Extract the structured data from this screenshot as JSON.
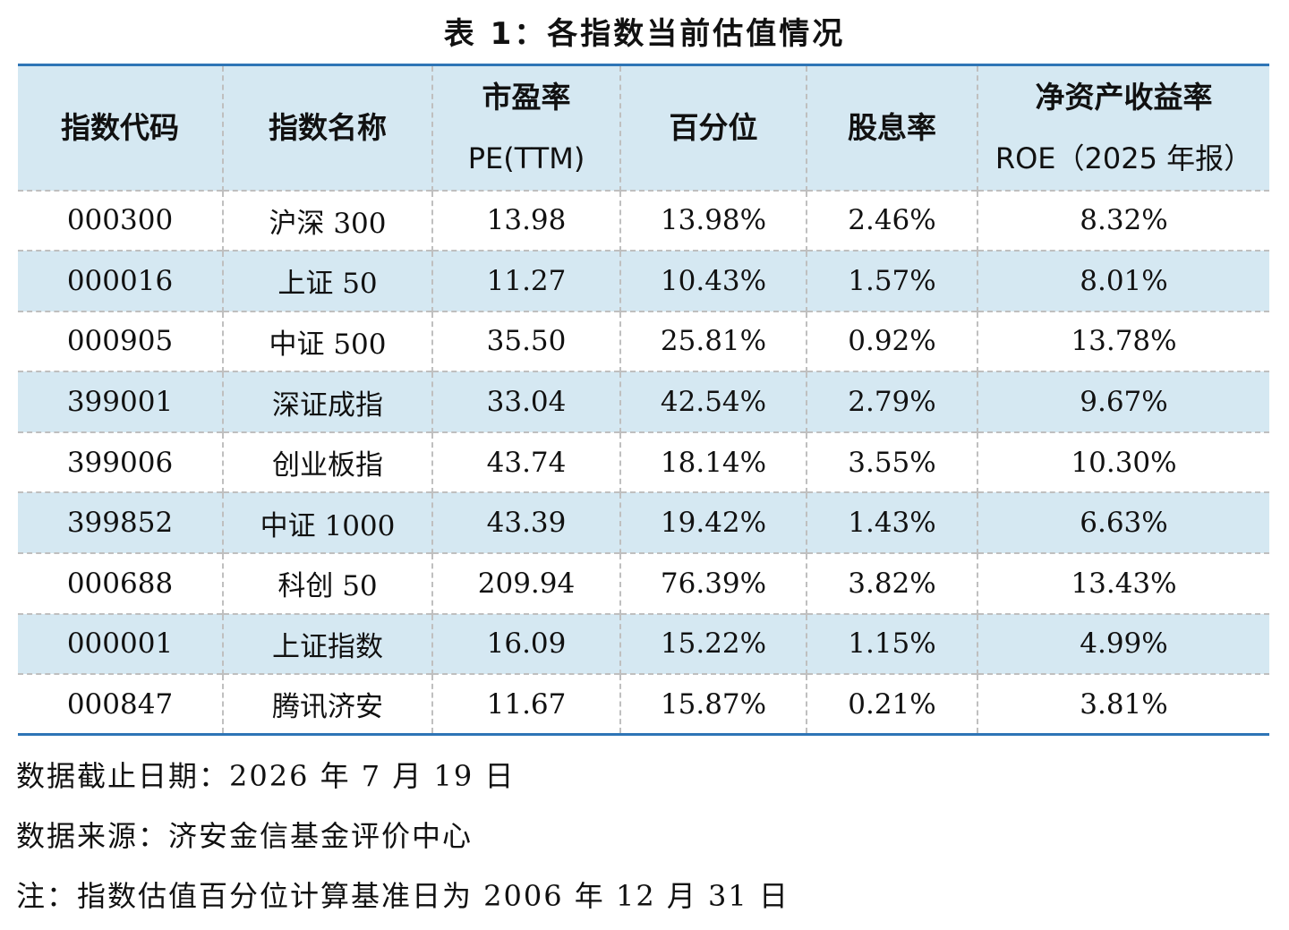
{
  "caption": "表 1：各指数当前估值情况",
  "columns": [
    {
      "line1": "指数代码",
      "line2": ""
    },
    {
      "line1": "指数名称",
      "line2": ""
    },
    {
      "line1": "市盈率",
      "line2": "PE(TTM)"
    },
    {
      "line1": "百分位",
      "line2": ""
    },
    {
      "line1": "股息率",
      "line2": ""
    },
    {
      "line1": "净资产收益率",
      "line2": "ROE（2025 年报）"
    }
  ],
  "rows": [
    [
      "000300",
      "沪深 300",
      "13.98",
      "13.98%",
      "2.46%",
      "8.32%"
    ],
    [
      "000016",
      "上证 50",
      "11.27",
      "10.43%",
      "1.57%",
      "8.01%"
    ],
    [
      "000905",
      "中证 500",
      "35.50",
      "25.81%",
      "0.92%",
      "13.78%"
    ],
    [
      "399001",
      "深证成指",
      "33.04",
      "42.54%",
      "2.79%",
      "9.67%"
    ],
    [
      "399006",
      "创业板指",
      "43.74",
      "18.14%",
      "3.55%",
      "10.30%"
    ],
    [
      "399852",
      "中证 1000",
      "43.39",
      "19.42%",
      "1.43%",
      "6.63%"
    ],
    [
      "000688",
      "科创 50",
      "209.94",
      "76.39%",
      "3.82%",
      "13.43%"
    ],
    [
      "000001",
      "上证指数",
      "16.09",
      "15.22%",
      "1.15%",
      "4.99%"
    ],
    [
      "000847",
      "腾讯济安",
      "11.67",
      "15.87%",
      "0.21%",
      "3.81%"
    ]
  ],
  "notes": {
    "date": "数据截止日期：2026 年 7 月 19 日",
    "source": "数据来源：济安金信基金评价中心",
    "remark": "注：指数估值百分位计算基准日为 2006 年 12 月 31 日"
  },
  "colors": {
    "header_bg": "#d5e8f2",
    "stripe_bg": "#d5e8f2",
    "rule": "#2e75b6"
  }
}
